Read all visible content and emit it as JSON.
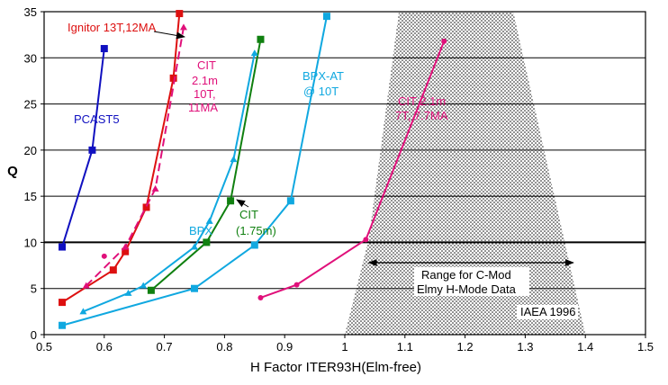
{
  "chart_data": {
    "type": "line",
    "xlabel": "H Factor ITER93H(Elm-free)",
    "ylabel": "Q",
    "xlim": [
      0.5,
      1.5
    ],
    "ylim": [
      0,
      35
    ],
    "x_ticks": [
      "0.5",
      "0.6",
      "0.7",
      "0.8",
      "0.9",
      "1",
      "1.1",
      "1.2",
      "1.3",
      "1.4",
      "1.5"
    ],
    "y_ticks": [
      "0",
      "5",
      "10",
      "15",
      "20",
      "25",
      "30",
      "35"
    ],
    "grid": "horizontal",
    "series": [
      {
        "name": "PCAST5",
        "color": "#1010c0",
        "marker": "square",
        "dash": false,
        "points": [
          [
            0.53,
            9.5
          ],
          [
            0.58,
            20
          ],
          [
            0.6,
            31
          ]
        ]
      },
      {
        "name": "Ignitor 13T,12MA",
        "color": "#dd1010",
        "marker": "square",
        "dash": false,
        "points": [
          [
            0.53,
            3.5
          ],
          [
            0.615,
            7
          ],
          [
            0.635,
            9
          ],
          [
            0.67,
            13.8
          ],
          [
            0.715,
            27.8
          ],
          [
            0.725,
            34.8
          ]
        ]
      },
      {
        "name": "CIT 2.1m 10T, 11MA",
        "color": "#e0107a",
        "marker": "triangle",
        "dash": true,
        "points": [
          [
            0.57,
            5.3
          ],
          [
            0.635,
            9.5
          ],
          [
            0.685,
            15.8
          ],
          [
            0.732,
            33.3
          ]
        ]
      },
      {
        "name": "CIT (1.75m)",
        "color": "#108010",
        "marker": "square",
        "dash": false,
        "points": [
          [
            0.678,
            4.8
          ],
          [
            0.77,
            10
          ],
          [
            0.81,
            14.5
          ],
          [
            0.86,
            32
          ]
        ]
      },
      {
        "name": "BPX",
        "color": "#10a8e0",
        "marker": "triangle",
        "dash": false,
        "points": [
          [
            0.565,
            2.5
          ],
          [
            0.64,
            4.5
          ],
          [
            0.665,
            5.3
          ],
          [
            0.75,
            9.5
          ],
          [
            0.775,
            12.3
          ],
          [
            0.815,
            19
          ],
          [
            0.85,
            30.5
          ]
        ]
      },
      {
        "name": "BPX-AT @ 10T",
        "color": "#10a8e0",
        "marker": "square",
        "dash": false,
        "points": [
          [
            0.53,
            1
          ],
          [
            0.75,
            5
          ],
          [
            0.85,
            9.7
          ],
          [
            0.91,
            14.5
          ],
          [
            0.97,
            34.5
          ]
        ]
      },
      {
        "name": "CIT 2.1m 7T, 7.7MA",
        "color": "#e0107a",
        "marker": "dot",
        "dash": false,
        "points": [
          [
            0.86,
            4
          ],
          [
            0.92,
            5.4
          ],
          [
            1.035,
            10.3
          ],
          [
            1.165,
            31.8
          ]
        ]
      }
    ],
    "extra_markers": [
      {
        "color": "#e0107a",
        "marker": "dot",
        "point": [
          0.6,
          8.5
        ]
      }
    ],
    "shaded_region": {
      "description": "Range for C-Mod Elmy H-Mode Data",
      "polygon": [
        [
          1.04,
          10.4
        ],
        [
          1.09,
          35
        ],
        [
          1.28,
          35
        ],
        [
          1.4,
          0
        ],
        [
          1.0,
          0
        ]
      ]
    },
    "reference_line_y": 10,
    "range_arrow": {
      "from": 1.04,
      "to": 1.38,
      "y": 7.8
    }
  },
  "labels": {
    "pcast": "PCAST5",
    "ignitor": "Ignitor 13T,12MA",
    "cit21_l1": "CIT",
    "cit21_l2": "2.1m",
    "cit21_l3": "10T,",
    "cit21_l4": "11MA",
    "bpxat_l1": "BPX-AT",
    "bpxat_l2": "@ 10T",
    "cit7_l1": "CIT 2.1m",
    "cit7_l2": "7T, 7.7MA",
    "bpx": "BPX",
    "cit175_l1": "CIT",
    "cit175_l2": "(1.75m)",
    "range_l1": "Range for C-Mod",
    "range_l2": "Elmy H-Mode Data",
    "iaea": "IAEA 1996"
  }
}
